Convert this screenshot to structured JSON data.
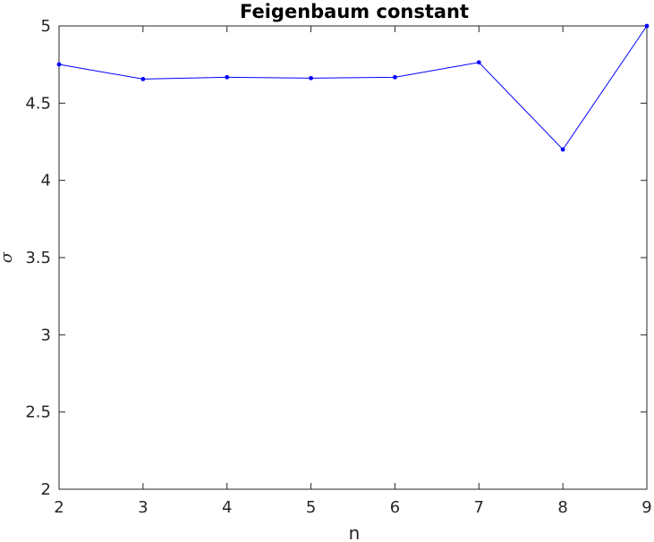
{
  "chart_data": {
    "type": "line",
    "title": "Feigenbaum constant",
    "xlabel": "n",
    "ylabel": "σ",
    "x": [
      2,
      3,
      4,
      5,
      6,
      7,
      8,
      9
    ],
    "series": [
      {
        "values": [
          4.751,
          4.656,
          4.668,
          4.662,
          4.668,
          4.764,
          4.2,
          5.0
        ]
      }
    ],
    "xlim": [
      2,
      9
    ],
    "ylim": [
      2,
      5
    ],
    "xticks": [
      2,
      3,
      4,
      5,
      6,
      7,
      8,
      9
    ],
    "yticks": [
      2,
      2.5,
      3,
      3.5,
      4,
      4.5,
      5
    ],
    "xtick_labels": [
      "2",
      "3",
      "4",
      "5",
      "6",
      "7",
      "8",
      "9"
    ],
    "ytick_labels": [
      "2",
      "2.5",
      "3",
      "3.5",
      "4",
      "4.5",
      "5"
    ],
    "grid": false,
    "line_color": "#0000ff",
    "axis_color": "#262626"
  }
}
